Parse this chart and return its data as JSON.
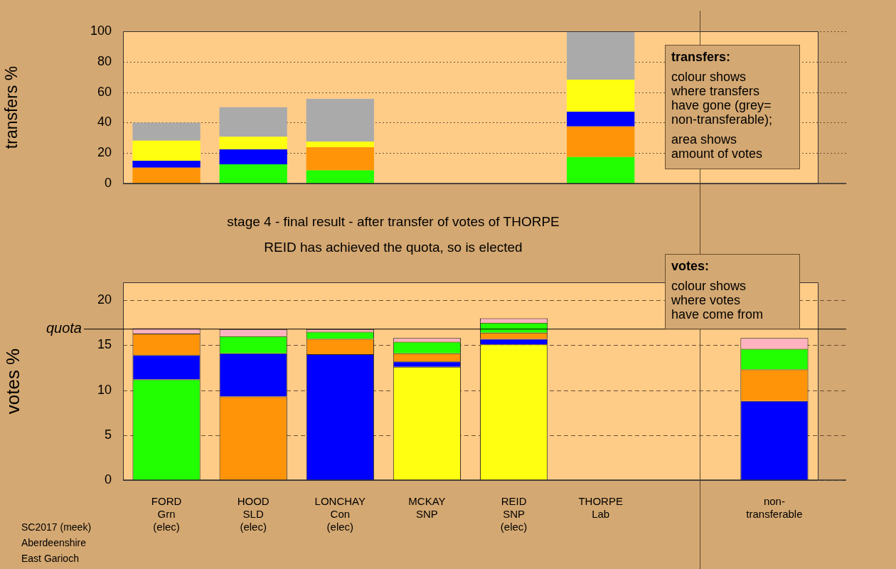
{
  "chart_data": [
    {
      "type": "bar",
      "stacked": true,
      "ylabel": "transfers %",
      "categories": [
        null,
        null,
        null,
        null,
        null,
        null,
        null,
        null
      ],
      "ylim": [
        0,
        100
      ],
      "yticks": [
        0,
        20,
        40,
        60,
        80,
        100
      ],
      "grid": "y",
      "legend": false,
      "tick_labels": "y",
      "series": [
        {
          "color": "#22ff00",
          "values": [
            null,
            12.6,
            8.7,
            null,
            null,
            17.4,
            null,
            null
          ]
        },
        {
          "color": "#ff9408",
          "values": [
            10.4,
            null,
            15.1,
            null,
            null,
            20.1,
            null,
            null
          ]
        },
        {
          "color": "#0000ff",
          "values": [
            4.6,
            9.8,
            null,
            null,
            null,
            9.7,
            null,
            null
          ]
        },
        {
          "color": "#ffff11",
          "values": [
            13.2,
            8.3,
            3.8,
            null,
            null,
            21.0,
            null,
            null
          ]
        },
        {
          "color": "#aaaaaa",
          "values": [
            11.8,
            19.4,
            28.0,
            null,
            null,
            31.8,
            null,
            null
          ]
        }
      ],
      "annotations": [
        "transfers:\ncolour shows\nwhere transfers\nhave gone (grey=\nnon-transferable);\n\narea shows\namount of votes"
      ]
    },
    {
      "type": "bar",
      "stacked": true,
      "title": "stage 4 - final result - after transfer of votes of THORPE",
      "subtitle": "REID has achieved the quota, so is elected",
      "ylabel": "votes %",
      "categories": [
        "FORD\nGrn\n(elec)",
        "HOOD\nSLD\n(elec)",
        "LONCHAY\nCon\n(elec)",
        "MCKAY\nSNP",
        "REID\nSNP\n(elec)",
        "THORPE\nLab",
        null,
        "non-\ntransferable"
      ],
      "ylim": [
        0,
        22
      ],
      "yticks": [
        0,
        5,
        10,
        15,
        20
      ],
      "grid": "y",
      "legend": false,
      "series": [
        {
          "colors": [
            "#22ff00",
            "#ff9408",
            "#0000ff",
            "#ffff11",
            "#ffff11",
            "#ffb3c0",
            "#aaaaaa",
            "#aaaaaa"
          ],
          "values": [
            11.2,
            9.3,
            14.0,
            12.6,
            15.1,
            0,
            null,
            null
          ]
        },
        {
          "color": "#0000ff",
          "values": [
            2.7,
            4.8,
            null,
            0.6,
            0.6,
            null,
            null,
            8.8
          ]
        },
        {
          "color": "#ff9408",
          "values": [
            2.4,
            null,
            1.7,
            0.9,
            0.7,
            null,
            null,
            3.5
          ]
        },
        {
          "color": "#22ff00",
          "values": [
            null,
            1.9,
            0.8,
            1.3,
            1.1,
            null,
            null,
            2.3
          ]
        },
        {
          "color": "#ffb3c0",
          "values": [
            0.6,
            0.8,
            0.3,
            0.4,
            0.5,
            null,
            null,
            1.2
          ]
        }
      ],
      "ref_lines": [
        {
          "axis": "y",
          "value": 16.8,
          "label": "quota",
          "color": "#000000",
          "line_style": "solid"
        }
      ],
      "annotations": [
        "votes:\ncolour shows\nwhere votes\nhave come from",
        "SC2017 (meek)",
        "Aberdeenshire",
        "East Garioch"
      ]
    }
  ]
}
